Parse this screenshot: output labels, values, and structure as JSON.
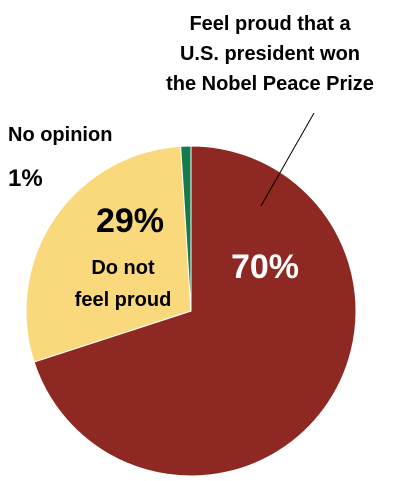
{
  "chart_data": {
    "type": "pie",
    "slices": [
      {
        "label_lines": [
          "Feel proud that a",
          "U.S. president won",
          "the Nobel Peace Prize"
        ],
        "value": 70,
        "value_label": "70%",
        "color": "#8E2823"
      },
      {
        "label_lines": [
          "Do not",
          "feel proud"
        ],
        "value": 29,
        "value_label": "29%",
        "color": "#F9D97B"
      },
      {
        "label_lines": [
          "No opinion"
        ],
        "value": 1,
        "value_label": "1%",
        "color": "#167A4E"
      }
    ],
    "legend": "none"
  }
}
